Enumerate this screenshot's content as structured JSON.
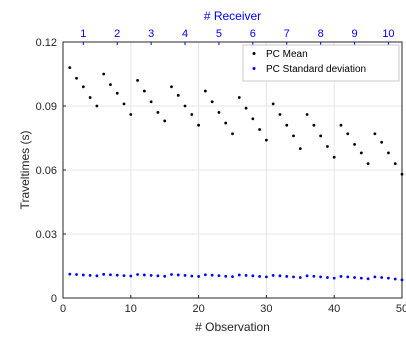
{
  "chart_data": {
    "type": "scatter",
    "xlabel": "# Observation",
    "ylabel": "Traveltimes (s)",
    "top_xlabel": "# Receiver",
    "xlim": [
      0,
      50
    ],
    "ylim": [
      0,
      0.12
    ],
    "x_ticks": [
      0,
      10,
      20,
      30,
      40,
      50
    ],
    "y_ticks": [
      0,
      0.03,
      0.06,
      0.09,
      0.12
    ],
    "y_tick_labels": [
      "0",
      "0.03",
      "0.06",
      "0.09",
      "0.12"
    ],
    "top_ticks": [
      3,
      8,
      13,
      18,
      23,
      28,
      33,
      38,
      43,
      48
    ],
    "top_tick_labels": [
      "1",
      "2",
      "3",
      "4",
      "5",
      "6",
      "7",
      "8",
      "9",
      "10"
    ],
    "grid": true,
    "legend_position": "top-right",
    "colors": {
      "series_1": "#000000",
      "series_2": "#0000ff",
      "top_axis": "#0000ff"
    },
    "series": [
      {
        "name": "PC Mean",
        "x": [
          1,
          2,
          3,
          4,
          5,
          6,
          7,
          8,
          9,
          10,
          11,
          12,
          13,
          14,
          15,
          16,
          17,
          18,
          19,
          20,
          21,
          22,
          23,
          24,
          25,
          26,
          27,
          28,
          29,
          30,
          31,
          32,
          33,
          34,
          35,
          36,
          37,
          38,
          39,
          40,
          41,
          42,
          43,
          44,
          45,
          46,
          47,
          48,
          49,
          50
        ],
        "y": [
          0.108,
          0.103,
          0.099,
          0.094,
          0.09,
          0.105,
          0.1,
          0.096,
          0.091,
          0.086,
          0.102,
          0.097,
          0.092,
          0.087,
          0.083,
          0.099,
          0.095,
          0.09,
          0.086,
          0.081,
          0.097,
          0.092,
          0.087,
          0.082,
          0.077,
          0.094,
          0.089,
          0.084,
          0.079,
          0.074,
          0.091,
          0.086,
          0.081,
          0.076,
          0.07,
          0.086,
          0.081,
          0.076,
          0.071,
          0.066,
          0.081,
          0.077,
          0.072,
          0.068,
          0.063,
          0.077,
          0.073,
          0.068,
          0.063,
          0.058
        ]
      },
      {
        "name": "PC Standard deviation",
        "x": [
          1,
          2,
          3,
          4,
          5,
          6,
          7,
          8,
          9,
          10,
          11,
          12,
          13,
          14,
          15,
          16,
          17,
          18,
          19,
          20,
          21,
          22,
          23,
          24,
          25,
          26,
          27,
          28,
          29,
          30,
          31,
          32,
          33,
          34,
          35,
          36,
          37,
          38,
          39,
          40,
          41,
          42,
          43,
          44,
          45,
          46,
          47,
          48,
          49,
          50
        ],
        "y": [
          0.0112,
          0.011,
          0.0108,
          0.0106,
          0.0104,
          0.0111,
          0.0109,
          0.0107,
          0.0105,
          0.0103,
          0.011,
          0.0108,
          0.0106,
          0.0104,
          0.0102,
          0.011,
          0.0108,
          0.0106,
          0.0103,
          0.0101,
          0.0109,
          0.0107,
          0.0105,
          0.0102,
          0.01,
          0.0108,
          0.0106,
          0.0104,
          0.0101,
          0.0099,
          0.0106,
          0.0104,
          0.0101,
          0.0099,
          0.0096,
          0.0104,
          0.0102,
          0.0099,
          0.0096,
          0.0093,
          0.0101,
          0.0099,
          0.0096,
          0.0093,
          0.009,
          0.0099,
          0.0096,
          0.0093,
          0.0089,
          0.0085
        ]
      }
    ]
  }
}
